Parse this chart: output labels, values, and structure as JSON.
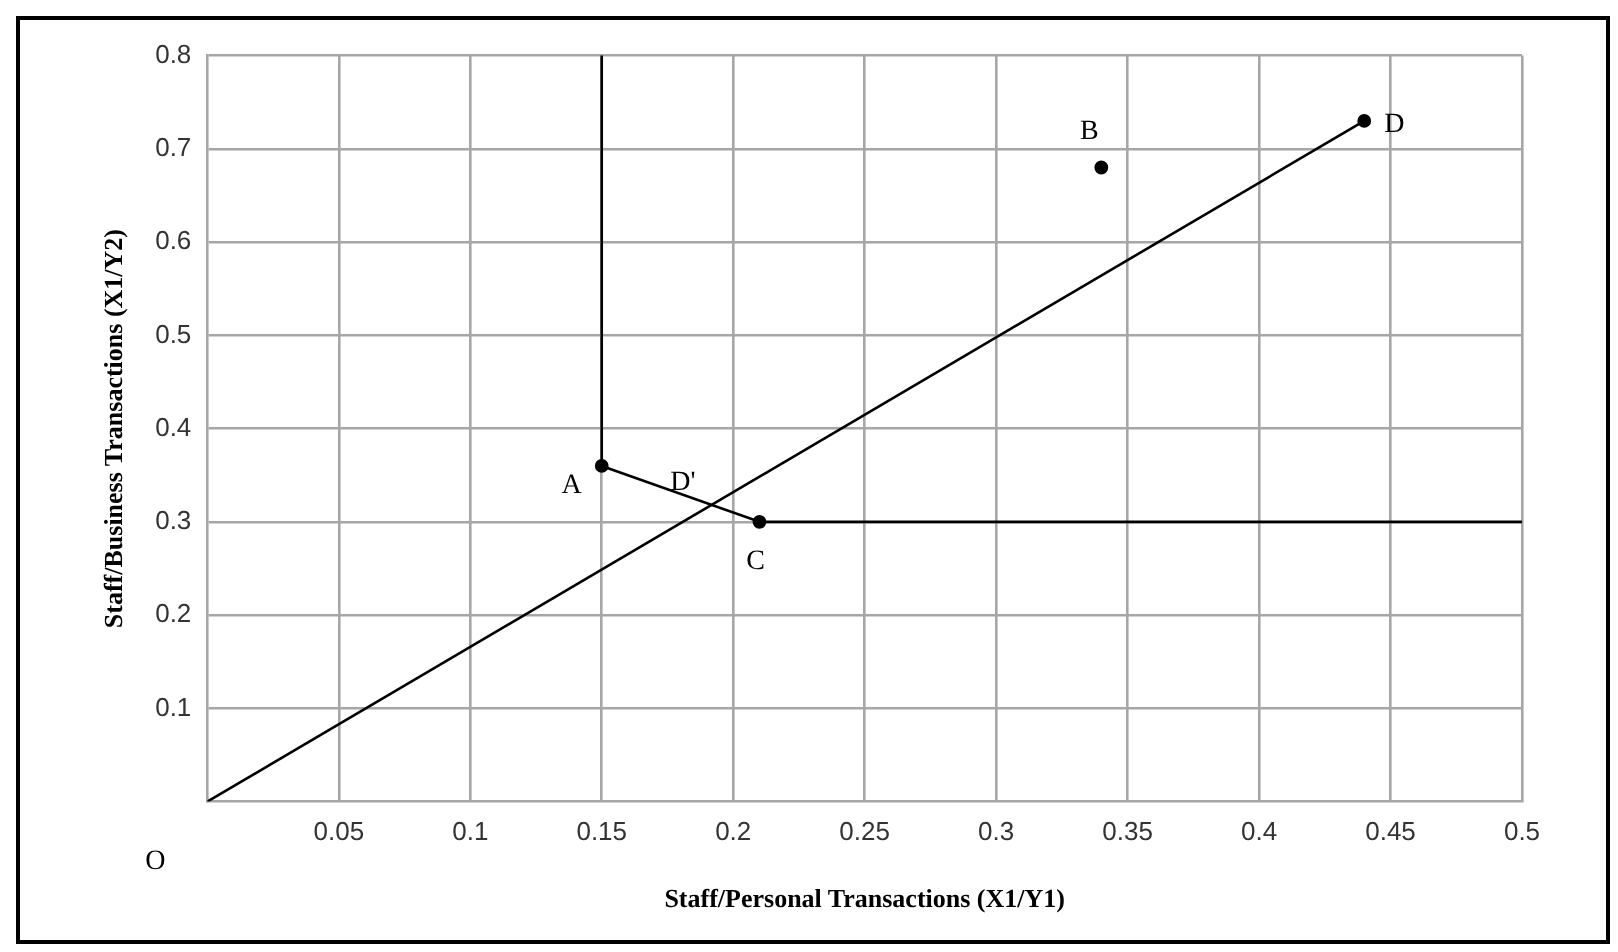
{
  "chart_data": {
    "type": "scatter",
    "xlabel": "Staff/Personal Transactions (X1/Y1)",
    "ylabel": "Staff/Business Transactions (X1/Y2)",
    "xlim": [
      0,
      0.5
    ],
    "xticks": [
      0.05,
      0.1,
      0.15,
      0.2,
      0.25,
      0.3,
      0.35,
      0.4,
      0.45,
      0.5
    ],
    "ylim": [
      0,
      0.8
    ],
    "yticks": [
      0.1,
      0.2,
      0.3,
      0.4,
      0.5,
      0.6,
      0.7,
      0.8
    ],
    "grid": true,
    "legend": false,
    "series": [
      {
        "type": "line",
        "color": "#000000",
        "x": [
          0.15,
          0.15,
          0.21,
          0.5
        ],
        "values": [
          0.8,
          0.36,
          0.3,
          0.3
        ],
        "marker": "none",
        "line_style": "solid"
      },
      {
        "type": "line",
        "color": "#000000",
        "x": [
          0,
          0.44
        ],
        "values": [
          0,
          0.73
        ],
        "marker": "none",
        "line_style": "solid"
      },
      {
        "color": "#000000",
        "x": [
          0.15,
          0.34,
          0.21,
          0.44
        ],
        "values": [
          0.36,
          0.68,
          0.3,
          0.73
        ],
        "marker": "circle"
      }
    ],
    "annotations": [
      {
        "text": "A",
        "x": 0.15,
        "y": 0.36
      },
      {
        "text": "B",
        "x": 0.34,
        "y": 0.68
      },
      {
        "text": "C",
        "x": 0.21,
        "y": 0.3
      },
      {
        "text": "D",
        "x": 0.44,
        "y": 0.73
      },
      {
        "text": "D'",
        "x": 0.19,
        "y": 0.316
      },
      {
        "text": "O",
        "x": 0,
        "y": 0
      }
    ]
  }
}
